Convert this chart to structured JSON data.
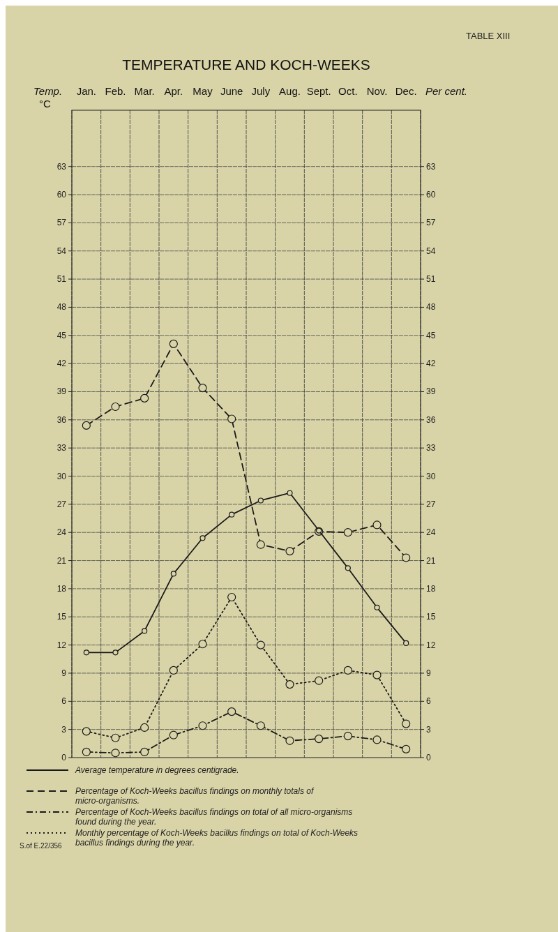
{
  "chart_data": {
    "type": "line",
    "title": "TEMPERATURE AND KOCH-WEEKS",
    "xlabel": null,
    "ylabel": "Temp. °C",
    "y2label": "Per cent.",
    "categories": [
      "Jan.",
      "Feb.",
      "Mar.",
      "Apr.",
      "May",
      "June",
      "July",
      "Aug.",
      "Sept.",
      "Oct.",
      "Nov.",
      "Dec."
    ],
    "ylim": [
      0,
      69
    ],
    "yticks": [
      0,
      3,
      6,
      9,
      12,
      15,
      18,
      21,
      24,
      27,
      30,
      33,
      36,
      39,
      42,
      45,
      48,
      51,
      54,
      57,
      60,
      63
    ],
    "y2lim": [
      0,
      69
    ],
    "y2ticks": [
      0,
      3,
      6,
      9,
      12,
      15,
      18,
      21,
      24,
      27,
      30,
      33,
      36,
      39,
      42,
      45,
      48,
      51,
      54,
      57,
      60,
      63
    ],
    "grid": true,
    "legend": "bottom",
    "marker": "circle",
    "series": [
      {
        "name": "Average temperature in degrees centigrade.",
        "color": "#1a1a1a",
        "line_style": "solid",
        "values": [
          11.2,
          11.2,
          13.5,
          19.6,
          23.4,
          25.9,
          27.4,
          28.2,
          24.2,
          20.2,
          16.0,
          12.2
        ]
      },
      {
        "name": "Percentage of Koch-Weeks bacillus findings on monthly totals of micro-organisms.",
        "color": "#1a1a1a",
        "line_style": "dashed",
        "values": [
          35.4,
          37.4,
          38.3,
          44.1,
          39.4,
          36.1,
          22.7,
          22.0,
          24.1,
          24.0,
          24.8,
          21.3
        ]
      },
      {
        "name": "Percentage of Koch-Weeks bacillus findings on total of all micro-organisms found during the year.",
        "color": "#1a1a1a",
        "line_style": "dashdot",
        "values": [
          0.6,
          0.5,
          0.6,
          2.4,
          3.4,
          4.9,
          3.4,
          1.8,
          2.0,
          2.3,
          1.9,
          0.9
        ]
      },
      {
        "name": "Monthly percentage of Koch-Weeks bacillus findings on total of Koch-Weeks bacillus findings during the year.",
        "color": "#1a1a1a",
        "line_style": "dotted",
        "values": [
          2.8,
          2.1,
          3.2,
          9.3,
          12.1,
          17.1,
          12.0,
          7.8,
          8.2,
          9.3,
          8.8,
          3.6
        ]
      }
    ],
    "annotations": [
      "TABLE XIII",
      "S.of E.22/356"
    ]
  }
}
